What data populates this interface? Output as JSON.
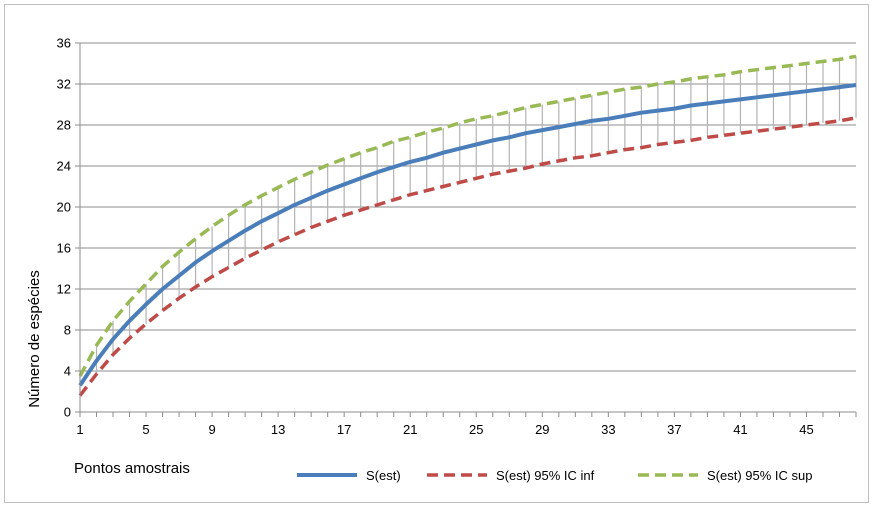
{
  "chart_data": {
    "type": "line",
    "title": "",
    "xlabel": "Pontos amostrais",
    "ylabel": "Número de espécies",
    "xlim": [
      1,
      48
    ],
    "ylim": [
      0,
      36
    ],
    "x_ticks": [
      1,
      5,
      9,
      13,
      17,
      21,
      25,
      29,
      33,
      37,
      41,
      45
    ],
    "y_ticks": [
      0,
      4,
      8,
      12,
      16,
      20,
      24,
      28,
      32,
      36
    ],
    "grid": "horizontal",
    "legend_position": "bottom-right",
    "error_bars": "vertical gray lines between lower and upper confidence bounds at each sample point",
    "x": [
      1,
      2,
      3,
      4,
      5,
      6,
      7,
      8,
      9,
      10,
      11,
      12,
      13,
      14,
      15,
      16,
      17,
      18,
      19,
      20,
      21,
      22,
      23,
      24,
      25,
      26,
      27,
      28,
      29,
      30,
      31,
      32,
      33,
      34,
      35,
      36,
      37,
      38,
      39,
      40,
      41,
      42,
      43,
      44,
      45,
      46,
      47,
      48
    ],
    "series": [
      {
        "name": "S(est)",
        "color": "#4a7ebb",
        "style": "solid",
        "values": [
          2.6,
          5.0,
          7.1,
          8.9,
          10.5,
          12.0,
          13.3,
          14.6,
          15.7,
          16.7,
          17.7,
          18.6,
          19.4,
          20.2,
          20.9,
          21.6,
          22.2,
          22.8,
          23.4,
          23.9,
          24.4,
          24.8,
          25.3,
          25.7,
          26.1,
          26.5,
          26.8,
          27.2,
          27.5,
          27.8,
          28.1,
          28.4,
          28.6,
          28.9,
          29.2,
          29.4,
          29.6,
          29.9,
          30.1,
          30.3,
          30.5,
          30.7,
          30.9,
          31.1,
          31.3,
          31.5,
          31.7,
          31.9
        ]
      },
      {
        "name": "S(est) 95% IC inf",
        "color": "#be4b48",
        "style": "dashed",
        "values": [
          1.6,
          3.7,
          5.6,
          7.2,
          8.6,
          9.9,
          11.1,
          12.2,
          13.2,
          14.1,
          15.0,
          15.8,
          16.6,
          17.3,
          18.0,
          18.6,
          19.2,
          19.7,
          20.2,
          20.7,
          21.2,
          21.6,
          22.0,
          22.4,
          22.8,
          23.2,
          23.5,
          23.8,
          24.2,
          24.5,
          24.8,
          25.0,
          25.3,
          25.6,
          25.8,
          26.1,
          26.3,
          26.5,
          26.8,
          27.0,
          27.2,
          27.4,
          27.6,
          27.8,
          28.0,
          28.2,
          28.4,
          28.7
        ]
      },
      {
        "name": "S(est) 95% IC sup",
        "color": "#98b954",
        "style": "dashed",
        "values": [
          3.5,
          6.5,
          8.9,
          10.8,
          12.5,
          14.2,
          15.6,
          16.9,
          18.1,
          19.2,
          20.2,
          21.1,
          21.9,
          22.7,
          23.4,
          24.1,
          24.7,
          25.3,
          25.8,
          26.4,
          26.8,
          27.3,
          27.7,
          28.2,
          28.6,
          28.9,
          29.3,
          29.7,
          30.0,
          30.3,
          30.6,
          30.9,
          31.2,
          31.5,
          31.7,
          32.0,
          32.2,
          32.5,
          32.7,
          32.9,
          33.2,
          33.4,
          33.6,
          33.8,
          34.0,
          34.2,
          34.4,
          34.7
        ]
      }
    ]
  }
}
